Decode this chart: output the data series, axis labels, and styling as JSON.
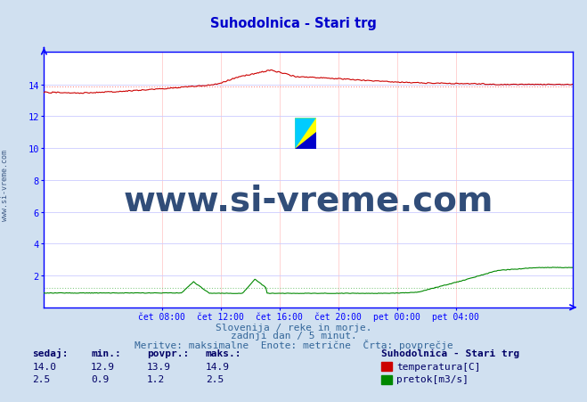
{
  "title": "Suhodolnica - Stari trg",
  "title_color": "#0000cc",
  "bg_color": "#d0e0f0",
  "plot_bg_color": "#ffffff",
  "grid_color_v": "#ffcccc",
  "grid_color_h": "#ccccff",
  "xlabel_color": "#336699",
  "ylabel_color": "#336699",
  "axis_color": "#0000ff",
  "temp_color": "#cc0000",
  "flow_color": "#008800",
  "avg_temp_color": "#ff8888",
  "avg_flow_color": "#88cc88",
  "watermark_color": "#1a3a6a",
  "watermark_text": "www.si-vreme.com",
  "watermark_fontsize": 28,
  "sidebar_text": "www.si-vreme.com",
  "sidebar_fontsize": 6,
  "footer_line1": "Slovenija / reke in morje.",
  "footer_line2": "zadnji dan / 5 minut.",
  "footer_line3": "Meritve: maksimalne  Enote: metrične  Črta: povprečje",
  "footer_color": "#336699",
  "footer_fontsize": 8,
  "table_header": [
    "sedaj:",
    "min.:",
    "povpr.:",
    "maks.:"
  ],
  "table_color": "#000066",
  "temp_stats": [
    14.0,
    12.9,
    13.9,
    14.9
  ],
  "flow_stats": [
    2.5,
    0.9,
    1.2,
    2.5
  ],
  "legend_title": "Suhodolnica - Stari trg",
  "legend_items": [
    "temperatura[C]",
    "pretok[m3/s]"
  ],
  "legend_colors": [
    "#cc0000",
    "#008800"
  ],
  "ylim": [
    0,
    16.07
  ],
  "yticks": [
    2,
    4,
    6,
    8,
    10,
    12,
    14
  ],
  "ytick_labels": [
    "2",
    "4",
    "6",
    "8",
    "10",
    "12",
    "14"
  ],
  "xtick_labels": [
    "čet 08:00",
    "čet 12:00",
    "čet 16:00",
    "čet 20:00",
    "pet 00:00",
    "pet 04:00"
  ],
  "xtick_positions": [
    96,
    144,
    192,
    240,
    288,
    336
  ],
  "total_points": 432,
  "avg_temp": 13.9,
  "avg_flow": 1.2
}
